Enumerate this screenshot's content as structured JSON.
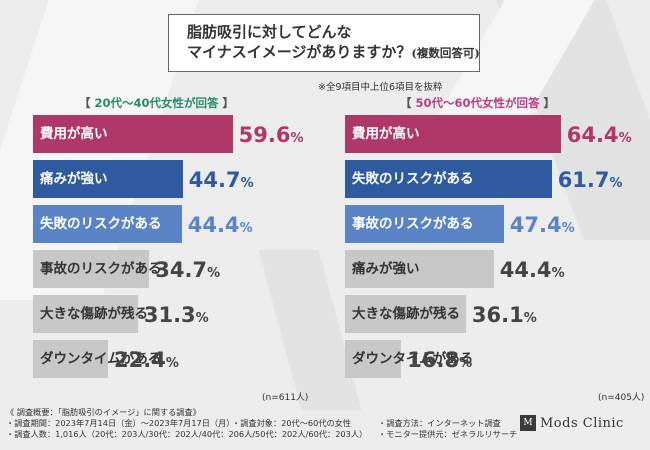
{
  "title": {
    "line1": "脂肪吸引に対してどんな",
    "line2_main": "マイナスイメージがありますか？",
    "line2_sub": "(複数回答可)"
  },
  "note": "※全9項目中上位6項目を抜粋",
  "chart_data": [
    {
      "type": "bar",
      "orientation": "horizontal",
      "title": "20代〜40代女性が回答",
      "n_label": "(n=611人)",
      "xlim": [
        0,
        100
      ],
      "categories": [
        "費用が高い",
        "痛みが強い",
        "失敗のリスクがある",
        "事故のリスクがある",
        "大きな傷跡が残る",
        "ダウンタイムがある"
      ],
      "values": [
        59.6,
        44.7,
        44.4,
        34.7,
        31.3,
        22.4
      ],
      "colors": [
        "#b03869",
        "#2f5aa0",
        "#5a84c6",
        "#c7c7c7",
        "#c7c7c7",
        "#c7c7c7"
      ],
      "value_colors": [
        "#b03869",
        "#2f5aa0",
        "#5a84c6",
        "#444444",
        "#444444",
        "#444444"
      ]
    },
    {
      "type": "bar",
      "orientation": "horizontal",
      "title": "50代〜60代女性が回答",
      "n_label": "(n=405人)",
      "xlim": [
        0,
        100
      ],
      "categories": [
        "費用が高い",
        "失敗のリスクがある",
        "事故のリスクがある",
        "痛みが強い",
        "大きな傷跡が残る",
        "ダウンタイムがある"
      ],
      "values": [
        64.4,
        61.7,
        47.4,
        44.4,
        36.1,
        16.8
      ],
      "colors": [
        "#b03869",
        "#2f5aa0",
        "#5a84c6",
        "#c7c7c7",
        "#c7c7c7",
        "#c7c7c7"
      ],
      "value_colors": [
        "#b03869",
        "#2f5aa0",
        "#5a84c6",
        "#444444",
        "#444444",
        "#444444"
      ]
    }
  ],
  "footer": {
    "heading": "《 調査概要：「脂肪吸引のイメージ」に関する調査》",
    "period": "・調査期間：2023年7月14日（金）〜2023年7月17日（月）",
    "target": "・調査対象：20代〜60代の女性",
    "method": "・調査方法：インターネット調査",
    "count": "・調査人数：1,016人（20代：203人/30代：202人/40代：206人/50代：202人/60代：203人）",
    "provider": "・モニター提供元：ゼネラルリサーチ"
  },
  "brand": {
    "mark": "M",
    "name": "Mods Clinic"
  }
}
